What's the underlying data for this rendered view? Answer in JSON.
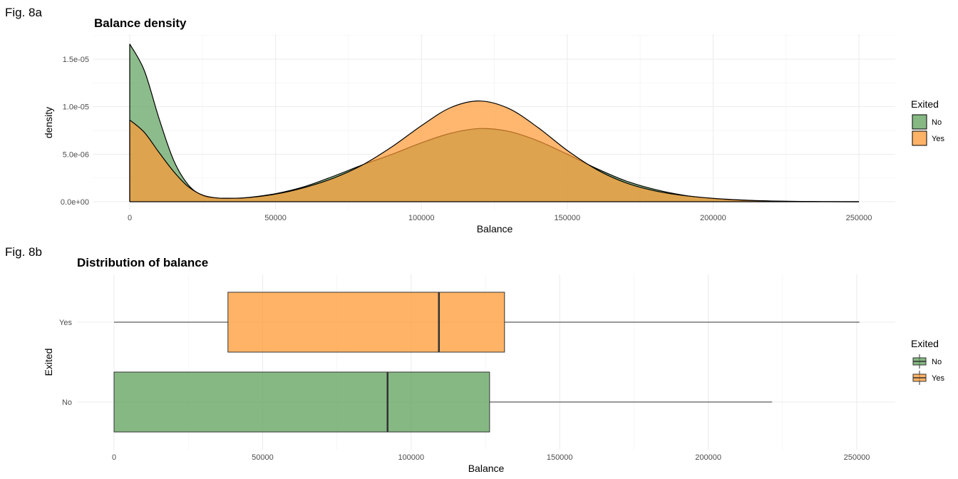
{
  "fig_labels": {
    "a": "Fig. 8a",
    "b": "Fig. 8b"
  },
  "colors": {
    "No": "#5da05b",
    "Yes": "#ff9933"
  },
  "chart_data": [
    {
      "type": "area",
      "title": "Balance density",
      "xlabel": "Balance",
      "ylabel": "density",
      "xlim": [
        0,
        250000
      ],
      "ylim": [
        0,
        1.7e-05
      ],
      "x_ticks": [
        0,
        50000,
        100000,
        150000,
        200000,
        250000
      ],
      "x_tick_labels": [
        "0",
        "50000",
        "100000",
        "150000",
        "200000",
        "250000"
      ],
      "y_ticks": [
        0,
        5e-06,
        1e-05,
        1.5e-05
      ],
      "y_tick_labels": [
        "0.0e+00",
        "5.0e-06",
        "1.0e-05",
        "1.5e-05"
      ],
      "legend": {
        "title": "Exited",
        "placement": "right",
        "entries": [
          "No",
          "Yes"
        ]
      },
      "grid": true,
      "x": [
        0,
        5000,
        10000,
        15000,
        20000,
        25000,
        30000,
        35000,
        40000,
        50000,
        60000,
        70000,
        80000,
        90000,
        100000,
        110000,
        120000,
        130000,
        140000,
        150000,
        160000,
        170000,
        180000,
        190000,
        200000,
        210000,
        220000,
        230000,
        240000,
        250000
      ],
      "series": [
        {
          "name": "No",
          "values": [
            1.66e-05,
            1.38e-05,
            8.8e-06,
            4.4e-06,
            1.8e-06,
            6.5e-07,
            3.8e-07,
            3.5e-07,
            4.2e-07,
            8.5e-07,
            1.6e-06,
            2.7e-06,
            3.9e-06,
            5e-06,
            6.2e-06,
            7.2e-06,
            7.7e-06,
            7.4e-06,
            6.4e-06,
            5e-06,
            3.5e-06,
            2.2e-06,
            1.3e-06,
            6.8e-07,
            3.3e-07,
            1.4e-07,
            5e-08,
            1.5e-08,
            4e-09,
            1e-09
          ]
        },
        {
          "name": "Yes",
          "values": [
            8.6e-06,
            7.3e-06,
            5.2e-06,
            3.2e-06,
            1.6e-06,
            7e-07,
            4e-07,
            3.7e-07,
            4.2e-07,
            8e-07,
            1.5e-06,
            2.5e-06,
            3.9e-06,
            5.8e-06,
            8e-06,
            9.9e-06,
            1.06e-05,
            9.8e-06,
            7.8e-06,
            5.4e-06,
            3.4e-06,
            2e-06,
            1.15e-06,
            6.5e-07,
            3.6e-07,
            1.8e-07,
            8e-08,
            3e-08,
            1e-08,
            2e-09
          ]
        }
      ]
    },
    {
      "type": "box",
      "title": "Distribution of balance",
      "xlabel": "Balance",
      "ylabel": "Exited",
      "xlim": [
        0,
        250000
      ],
      "x_ticks": [
        0,
        50000,
        100000,
        150000,
        200000,
        250000
      ],
      "x_tick_labels": [
        "0",
        "50000",
        "100000",
        "150000",
        "200000",
        "250000"
      ],
      "categories": [
        "Yes",
        "No"
      ],
      "legend": {
        "title": "Exited",
        "placement": "right",
        "entries": [
          "No",
          "Yes"
        ]
      },
      "grid": true,
      "boxes": [
        {
          "category": "Yes",
          "min": 0,
          "q1": 38340,
          "median": 109350,
          "q3": 131430,
          "max": 250900
        },
        {
          "category": "No",
          "min": 0,
          "q1": 0,
          "median": 92070,
          "q3": 126400,
          "max": 221500
        }
      ]
    }
  ]
}
